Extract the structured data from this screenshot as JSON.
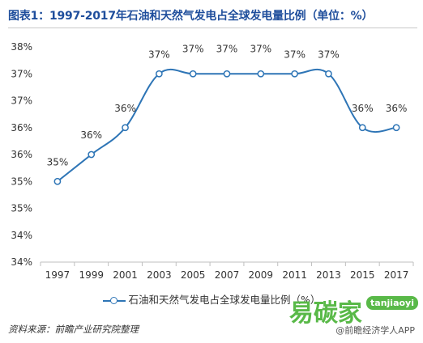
{
  "header": {
    "title": "图表1：1997-2017年石油和天然气发电占全球发电量比例（单位：%）"
  },
  "chart_data": {
    "type": "line",
    "x": [
      "1997",
      "1999",
      "2001",
      "2003",
      "2005",
      "2007",
      "2009",
      "2011",
      "2013",
      "2015",
      "2017"
    ],
    "values": [
      35.0,
      35.5,
      36.0,
      37.0,
      37.0,
      37.0,
      37.0,
      37.0,
      37.0,
      36.0,
      36.0
    ],
    "data_labels": [
      "35%",
      "36%",
      "36%",
      "37%",
      "37%",
      "37%",
      "37%",
      "37%",
      "37%",
      "36%",
      "36%"
    ],
    "y_ticks": [
      "34%",
      "34%",
      "35%",
      "35%",
      "36%",
      "36%",
      "37%",
      "37%",
      "38%"
    ],
    "ylim": [
      33.5,
      37.5
    ],
    "series_name": "石油和天然气发电占全球发电量比例（%）",
    "grid": false,
    "legend_position": "bottom",
    "color": "#2e75b6"
  },
  "footer": {
    "source": "资料来源：前瞻产业研究院整理",
    "logo_text": "易碳家",
    "logo_badge": "tanjiaoyi",
    "credit": "@前瞻经济学人APP"
  }
}
